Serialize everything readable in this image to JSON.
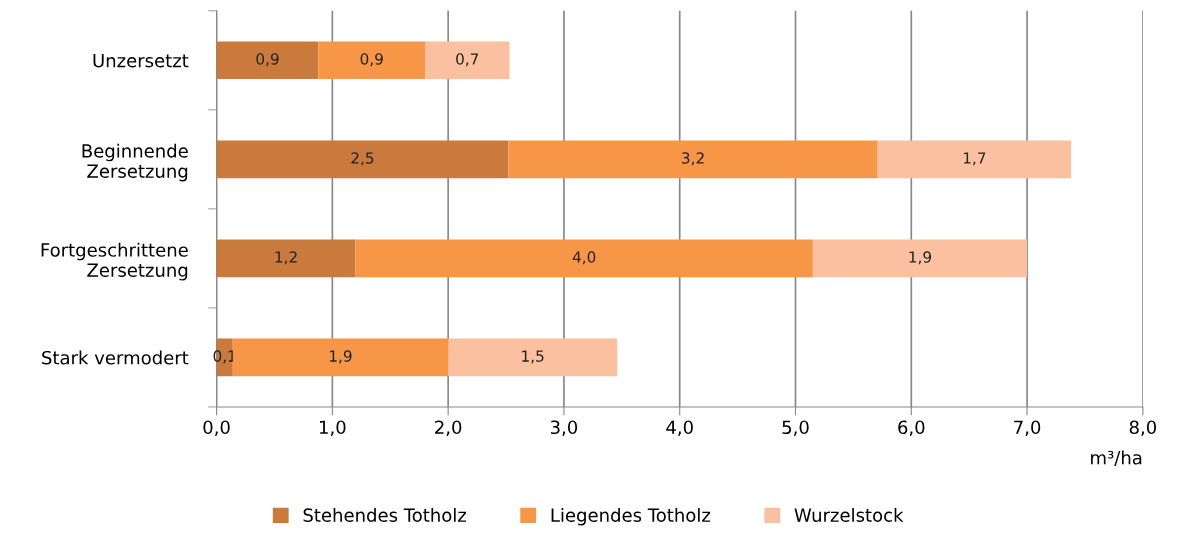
{
  "chart_data": {
    "type": "bar",
    "orientation": "horizontal",
    "stacked": true,
    "categories": [
      "Unzersetzt",
      "Beginnende\nZersetzung",
      "Fortgeschrittene\nZersetzung",
      "Stark vermodert"
    ],
    "series": [
      {
        "name": "Stehendes Totholz",
        "color": "#c97a3c",
        "values": [
          0.88,
          2.52,
          1.2,
          0.14
        ],
        "value_labels": [
          "0,9",
          "2,5",
          "1,2",
          "0,1"
        ]
      },
      {
        "name": "Liegendes Totholz",
        "color": "#f79646",
        "values": [
          0.92,
          3.19,
          3.95,
          1.86
        ],
        "value_labels": [
          "0,9",
          "3,2",
          "4,0",
          "1,9"
        ]
      },
      {
        "name": "Wurzelstock",
        "color": "#fac09f",
        "values": [
          0.73,
          1.67,
          1.85,
          1.46
        ],
        "value_labels": [
          "0,7",
          "1,7",
          "1,9",
          "1,5"
        ]
      }
    ],
    "xlabel": "m³/ha",
    "xlim": [
      0,
      8
    ],
    "xticks": [
      {
        "value": 0,
        "label": "0,0"
      },
      {
        "value": 1,
        "label": "1,0"
      },
      {
        "value": 2,
        "label": "2,0"
      },
      {
        "value": 3,
        "label": "3,0"
      },
      {
        "value": 4,
        "label": "4,0"
      },
      {
        "value": 5,
        "label": "5,0"
      },
      {
        "value": 6,
        "label": "6,0"
      },
      {
        "value": 7,
        "label": "7,0"
      },
      {
        "value": 8,
        "label": "8,0"
      }
    ],
    "grid": "x",
    "legend": "bottom"
  }
}
